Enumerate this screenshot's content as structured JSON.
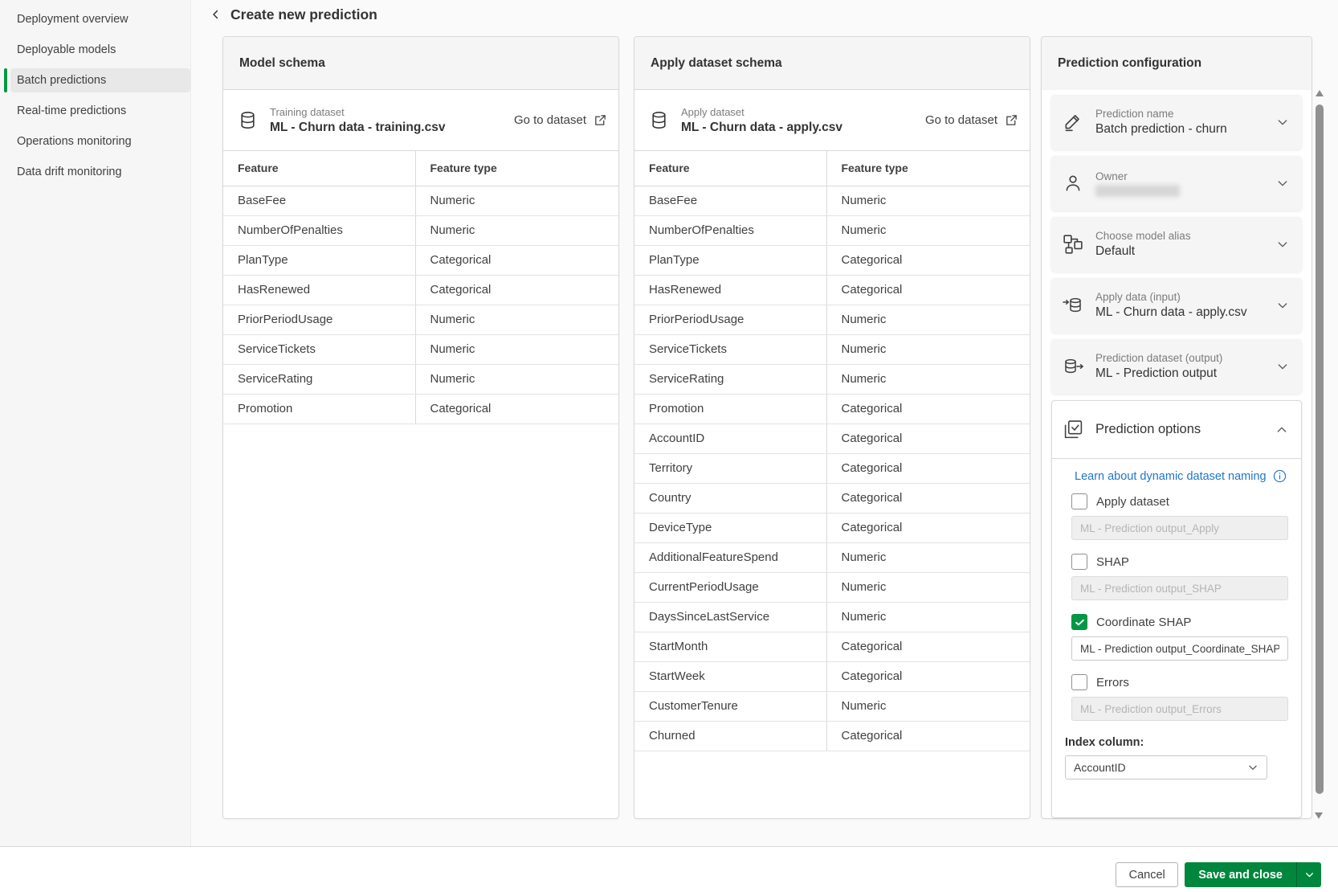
{
  "sidebar": {
    "items": [
      {
        "label": "Deployment overview",
        "active": false
      },
      {
        "label": "Deployable models",
        "active": false
      },
      {
        "label": "Batch predictions",
        "active": true
      },
      {
        "label": "Real-time predictions",
        "active": false
      },
      {
        "label": "Operations monitoring",
        "active": false
      },
      {
        "label": "Data drift monitoring",
        "active": false
      }
    ]
  },
  "header": {
    "title": "Create new prediction"
  },
  "model_schema": {
    "title": "Model schema",
    "dataset_label": "Training dataset",
    "dataset_name": "ML - Churn data - training.csv",
    "go_to_dataset": "Go to dataset",
    "columns": [
      "Feature",
      "Feature type"
    ],
    "rows": [
      [
        "BaseFee",
        "Numeric"
      ],
      [
        "NumberOfPenalties",
        "Numeric"
      ],
      [
        "PlanType",
        "Categorical"
      ],
      [
        "HasRenewed",
        "Categorical"
      ],
      [
        "PriorPeriodUsage",
        "Numeric"
      ],
      [
        "ServiceTickets",
        "Numeric"
      ],
      [
        "ServiceRating",
        "Numeric"
      ],
      [
        "Promotion",
        "Categorical"
      ]
    ]
  },
  "apply_schema": {
    "title": "Apply dataset schema",
    "dataset_label": "Apply dataset",
    "dataset_name": "ML - Churn data - apply.csv",
    "go_to_dataset": "Go to dataset",
    "columns": [
      "Feature",
      "Feature type"
    ],
    "rows": [
      [
        "BaseFee",
        "Numeric"
      ],
      [
        "NumberOfPenalties",
        "Numeric"
      ],
      [
        "PlanType",
        "Categorical"
      ],
      [
        "HasRenewed",
        "Categorical"
      ],
      [
        "PriorPeriodUsage",
        "Numeric"
      ],
      [
        "ServiceTickets",
        "Numeric"
      ],
      [
        "ServiceRating",
        "Numeric"
      ],
      [
        "Promotion",
        "Categorical"
      ],
      [
        "AccountID",
        "Categorical"
      ],
      [
        "Territory",
        "Categorical"
      ],
      [
        "Country",
        "Categorical"
      ],
      [
        "DeviceType",
        "Categorical"
      ],
      [
        "AdditionalFeatureSpend",
        "Numeric"
      ],
      [
        "CurrentPeriodUsage",
        "Numeric"
      ],
      [
        "DaysSinceLastService",
        "Numeric"
      ],
      [
        "StartMonth",
        "Categorical"
      ],
      [
        "StartWeek",
        "Categorical"
      ],
      [
        "CustomerTenure",
        "Numeric"
      ],
      [
        "Churned",
        "Categorical"
      ]
    ]
  },
  "config": {
    "title": "Prediction configuration",
    "cards": [
      {
        "icon": "pencil-icon",
        "label": "Prediction name",
        "value": "Batch prediction - churn"
      },
      {
        "icon": "person-icon",
        "label": "Owner",
        "value": "",
        "redacted": true
      },
      {
        "icon": "model-alias-icon",
        "label": "Choose model alias",
        "value": "Default"
      },
      {
        "icon": "dataset-input-icon",
        "label": "Apply data (input)",
        "value": "ML - Churn data - apply.csv"
      },
      {
        "icon": "dataset-output-icon",
        "label": "Prediction dataset (output)",
        "value": "ML - Prediction output"
      }
    ],
    "options": {
      "icon": "prediction-options-icon",
      "title": "Prediction options",
      "link": "Learn about dynamic dataset naming",
      "checkboxes": [
        {
          "label": "Apply dataset",
          "checked": false,
          "enabled": false,
          "dataset_name": "ML - Prediction output_Apply"
        },
        {
          "label": "SHAP",
          "checked": false,
          "enabled": false,
          "dataset_name": "ML - Prediction output_SHAP"
        },
        {
          "label": "Coordinate SHAP",
          "checked": true,
          "enabled": true,
          "dataset_name": "ML - Prediction output_Coordinate_SHAP"
        },
        {
          "label": "Errors",
          "checked": false,
          "enabled": false,
          "dataset_name": "ML - Prediction output_Errors"
        }
      ],
      "index_column_label": "Index column:",
      "index_column_value": "AccountID"
    }
  },
  "footer": {
    "cancel_label": "Cancel",
    "save_label": "Save and close"
  },
  "colors": {
    "accent_green": "#009845",
    "button_green": "#00873d",
    "link_blue": "#2077c8"
  }
}
